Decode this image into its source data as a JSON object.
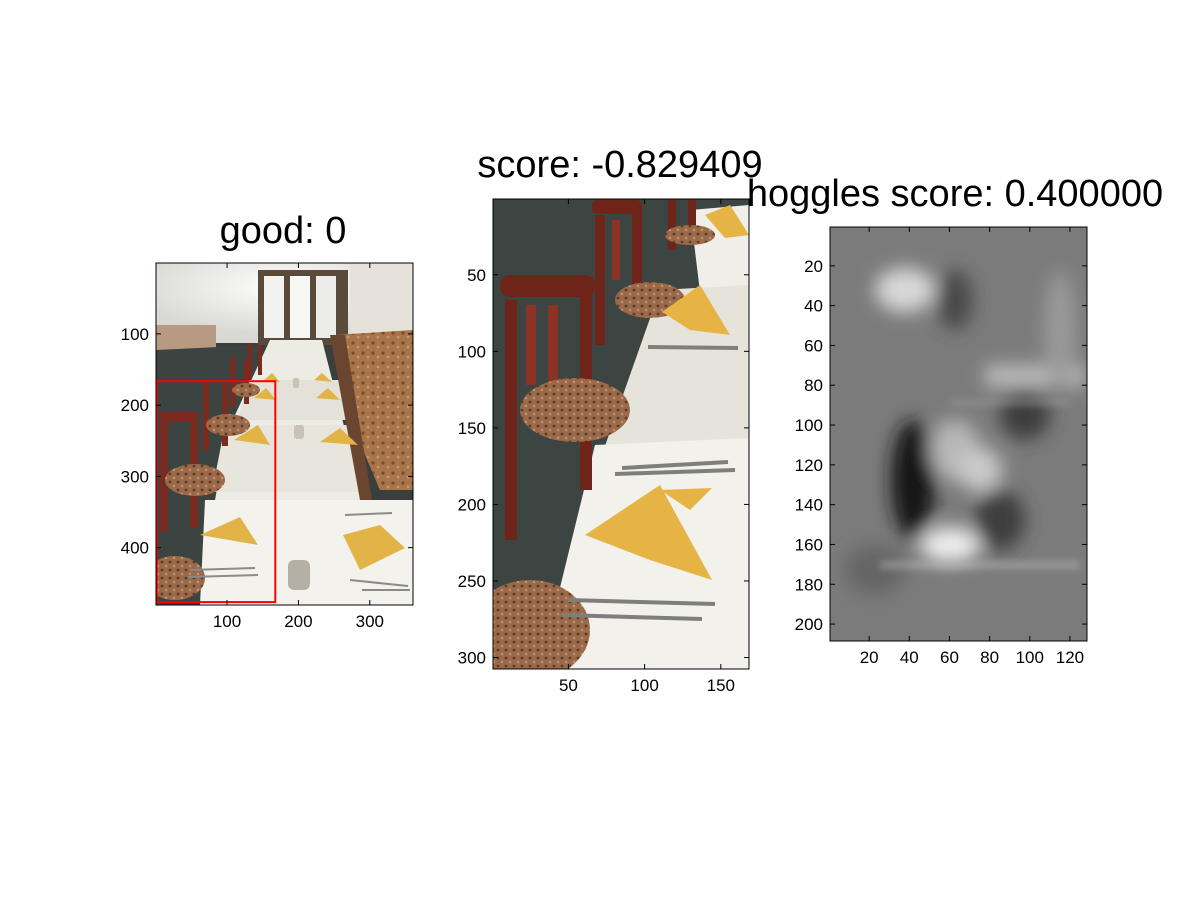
{
  "figure": {
    "background": "#ffffff"
  },
  "chart_data": [
    {
      "type": "image",
      "title": "good: 0",
      "image": "restaurant dining room with rows of tables, red chairs, yellow folded napkins and candle holders",
      "xlim": [
        0.5,
        360.5
      ],
      "ylim": [
        0.5,
        480.5
      ],
      "y_reversed": true,
      "xticks": [
        100,
        200,
        300
      ],
      "yticks": [
        100,
        200,
        300,
        400
      ],
      "detection_box": {
        "x": [
          1,
          168
        ],
        "y": [
          168,
          480
        ],
        "color": "#ff0000"
      }
    },
    {
      "type": "image",
      "title": "score: -0.829409",
      "image": "cropped detection window: red wooden chairs beside tables with white tablecloths and yellow napkins",
      "xlim": [
        0.5,
        168.5
      ],
      "ylim": [
        0.5,
        307.5
      ],
      "y_reversed": true,
      "xticks": [
        50,
        100,
        150
      ],
      "yticks": [
        50,
        100,
        150,
        200,
        250,
        300
      ]
    },
    {
      "type": "heatmap",
      "title": "hoggles score: 0.400000",
      "image": "grayscale HOG inverse (hoggles) visualization",
      "colormap": "gray",
      "xlim": [
        0.5,
        128.5
      ],
      "ylim": [
        0.5,
        208.5
      ],
      "y_reversed": true,
      "xticks": [
        20,
        40,
        60,
        80,
        100,
        120
      ],
      "yticks": [
        20,
        40,
        60,
        80,
        100,
        120,
        140,
        160,
        180,
        200
      ]
    }
  ]
}
